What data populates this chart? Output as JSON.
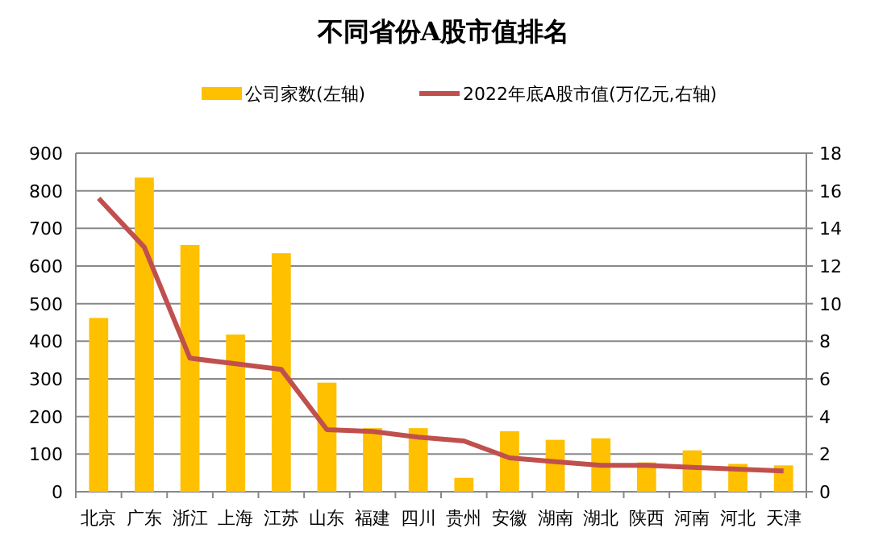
{
  "chart_data": {
    "type": "bar",
    "title": "不同省份A股市值排名",
    "categories": [
      "北京",
      "广东",
      "浙江",
      "上海",
      "江苏",
      "山东",
      "福建",
      "四川",
      "贵州",
      "安徽",
      "湖南",
      "湖北",
      "陕西",
      "河南",
      "河北",
      "天津"
    ],
    "series": [
      {
        "name": "公司家数(左轴)",
        "color": "#ffc000",
        "values": [
          462,
          835,
          656,
          418,
          634,
          290,
          169,
          169,
          37,
          161,
          138,
          142,
          78,
          110,
          74,
          70
        ]
      },
      {
        "name": "2022年底A股市值(万亿元,右轴)",
        "type": "line",
        "axis": "y2",
        "color": "#c0504d",
        "values": [
          15.6,
          13.0,
          7.1,
          6.8,
          6.5,
          3.3,
          3.2,
          2.9,
          2.7,
          1.8,
          1.6,
          1.4,
          1.4,
          1.3,
          1.2,
          1.1
        ]
      }
    ],
    "ylim": [
      0,
      900
    ],
    "yticks": [
      0,
      100,
      200,
      300,
      400,
      500,
      600,
      700,
      800,
      900
    ],
    "y2lim": [
      0,
      18
    ],
    "y2ticks": [
      0,
      2,
      4,
      6,
      8,
      10,
      12,
      14,
      16,
      18
    ],
    "grid": "y",
    "legend": "top",
    "marker": "none"
  }
}
